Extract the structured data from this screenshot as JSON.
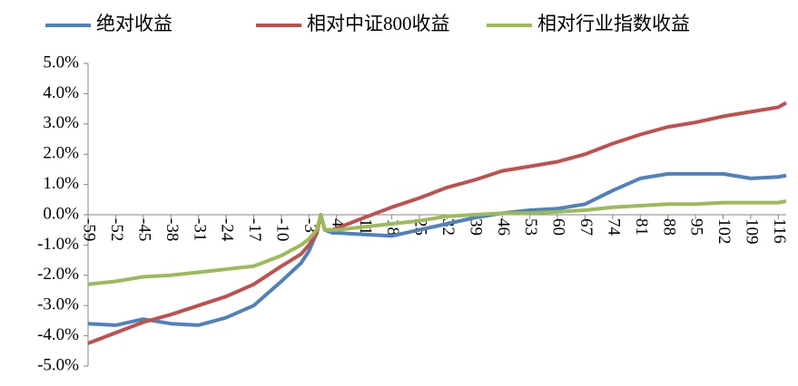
{
  "chart_data": {
    "type": "line",
    "x": [
      -59,
      -52,
      -45,
      -38,
      -31,
      -24,
      -17,
      -10,
      -5,
      -3,
      -1,
      0,
      1,
      3,
      4,
      11,
      18,
      25,
      32,
      39,
      46,
      53,
      60,
      67,
      74,
      81,
      88,
      95,
      102,
      109,
      116,
      118
    ],
    "series": [
      {
        "name": "绝对收益",
        "color": "#4f81bd",
        "values": [
          -3.6,
          -3.65,
          -3.45,
          -3.6,
          -3.65,
          -3.4,
          -3.0,
          -2.2,
          -1.6,
          -1.2,
          -0.6,
          0.0,
          -0.5,
          -0.6,
          -0.6,
          -0.65,
          -0.7,
          -0.5,
          -0.3,
          -0.1,
          0.05,
          0.15,
          0.2,
          0.35,
          0.8,
          1.2,
          1.35,
          1.35,
          1.35,
          1.2,
          1.25,
          1.3
        ]
      },
      {
        "name": "相对中证800收益",
        "color": "#c0504d",
        "values": [
          -4.25,
          -3.9,
          -3.55,
          -3.3,
          -3.0,
          -2.7,
          -2.3,
          -1.7,
          -1.3,
          -1.0,
          -0.6,
          0.0,
          -0.5,
          -0.5,
          -0.45,
          -0.1,
          0.25,
          0.55,
          0.9,
          1.15,
          1.45,
          1.6,
          1.75,
          2.0,
          2.35,
          2.65,
          2.9,
          3.05,
          3.25,
          3.4,
          3.55,
          3.7
        ]
      },
      {
        "name": "相对行业指数收益",
        "color": "#9bbb59",
        "values": [
          -2.3,
          -2.2,
          -2.05,
          -2.0,
          -1.9,
          -1.8,
          -1.7,
          -1.35,
          -1.0,
          -0.8,
          -0.5,
          0.0,
          -0.5,
          -0.5,
          -0.5,
          -0.4,
          -0.3,
          -0.2,
          -0.05,
          0.0,
          0.05,
          0.05,
          0.1,
          0.15,
          0.25,
          0.3,
          0.35,
          0.35,
          0.4,
          0.4,
          0.4,
          0.45
        ]
      }
    ],
    "xlim": [
      -59,
      118
    ],
    "xticks": [
      -59,
      -52,
      -45,
      -38,
      -31,
      -24,
      -17,
      -10,
      -3,
      4,
      11,
      18,
      25,
      32,
      39,
      46,
      53,
      60,
      67,
      74,
      81,
      88,
      95,
      102,
      109,
      116
    ],
    "ylim": [
      -5,
      5
    ],
    "yticks": [
      {
        "value": -5,
        "label": "-5.0%"
      },
      {
        "value": -4,
        "label": "-4.0%"
      },
      {
        "value": -3,
        "label": "-3.0%"
      },
      {
        "value": -2,
        "label": "-2.0%"
      },
      {
        "value": -1,
        "label": "-1.0%"
      },
      {
        "value": 0,
        "label": "0.0%"
      },
      {
        "value": 1,
        "label": "1.0%"
      },
      {
        "value": 2,
        "label": "2.0%"
      },
      {
        "value": 3,
        "label": "3.0%"
      },
      {
        "value": 4,
        "label": "4.0%"
      },
      {
        "value": 5,
        "label": "5.0%"
      }
    ],
    "grid": false,
    "legend": "top"
  }
}
